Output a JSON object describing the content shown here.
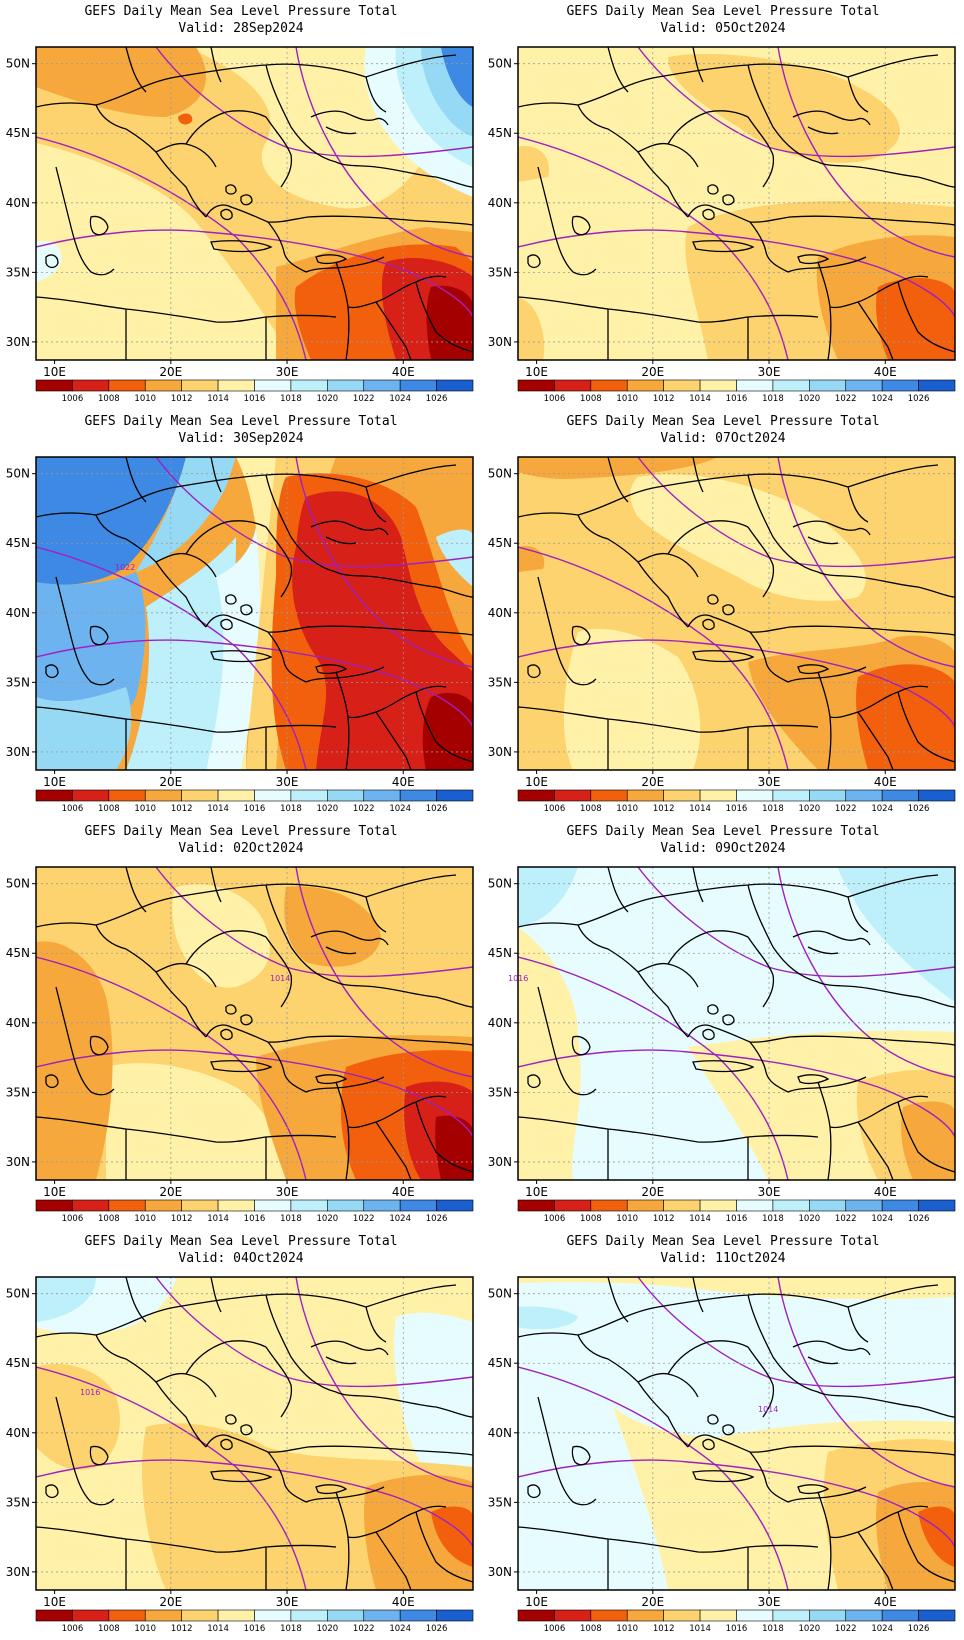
{
  "panels": [
    {
      "title": "GEFS Daily Mean Sea Level Pressure Total",
      "valid": "Valid: 28Sep2024",
      "scene": "p1"
    },
    {
      "title": "GEFS Daily Mean Sea Level Pressure Total",
      "valid": "Valid: 05Oct2024",
      "scene": "p2"
    },
    {
      "title": "GEFS Daily Mean Sea Level Pressure Total",
      "valid": "Valid: 30Sep2024",
      "scene": "p3",
      "contour_label": "1022"
    },
    {
      "title": "GEFS Daily Mean Sea Level Pressure Total",
      "valid": "Valid: 07Oct2024",
      "scene": "p4"
    },
    {
      "title": "GEFS Daily Mean Sea Level Pressure Total",
      "valid": "Valid: 02Oct2024",
      "scene": "p5",
      "contour_label": "1014"
    },
    {
      "title": "GEFS Daily Mean Sea Level Pressure Total",
      "valid": "Valid: 09Oct2024",
      "scene": "p6",
      "contour_label": "1016"
    },
    {
      "title": "GEFS Daily Mean Sea Level Pressure Total",
      "valid": "Valid: 04Oct2024",
      "scene": "p7",
      "contour_label": "1016"
    },
    {
      "title": "GEFS Daily Mean Sea Level Pressure Total",
      "valid": "Valid: 11Oct2024",
      "scene": "p8",
      "contour_label": "1014"
    }
  ],
  "axes": {
    "lat_labels": [
      "50N",
      "45N",
      "40N",
      "35N",
      "30N"
    ],
    "lon_labels": [
      "10E",
      "20E",
      "30E",
      "40E"
    ]
  },
  "colorbar": {
    "labels": [
      "1006",
      "1008",
      "1010",
      "1012",
      "1014",
      "1016",
      "1018",
      "1020",
      "1022",
      "1024",
      "1026"
    ],
    "colors": [
      "#a50000",
      "#d72018",
      "#f2600e",
      "#f7a83c",
      "#fcd36e",
      "#fff2a8",
      "#e6fcff",
      "#bdf0fa",
      "#96d9f5",
      "#6cb3ef",
      "#3d89e3",
      "#1a5fd0"
    ]
  }
}
